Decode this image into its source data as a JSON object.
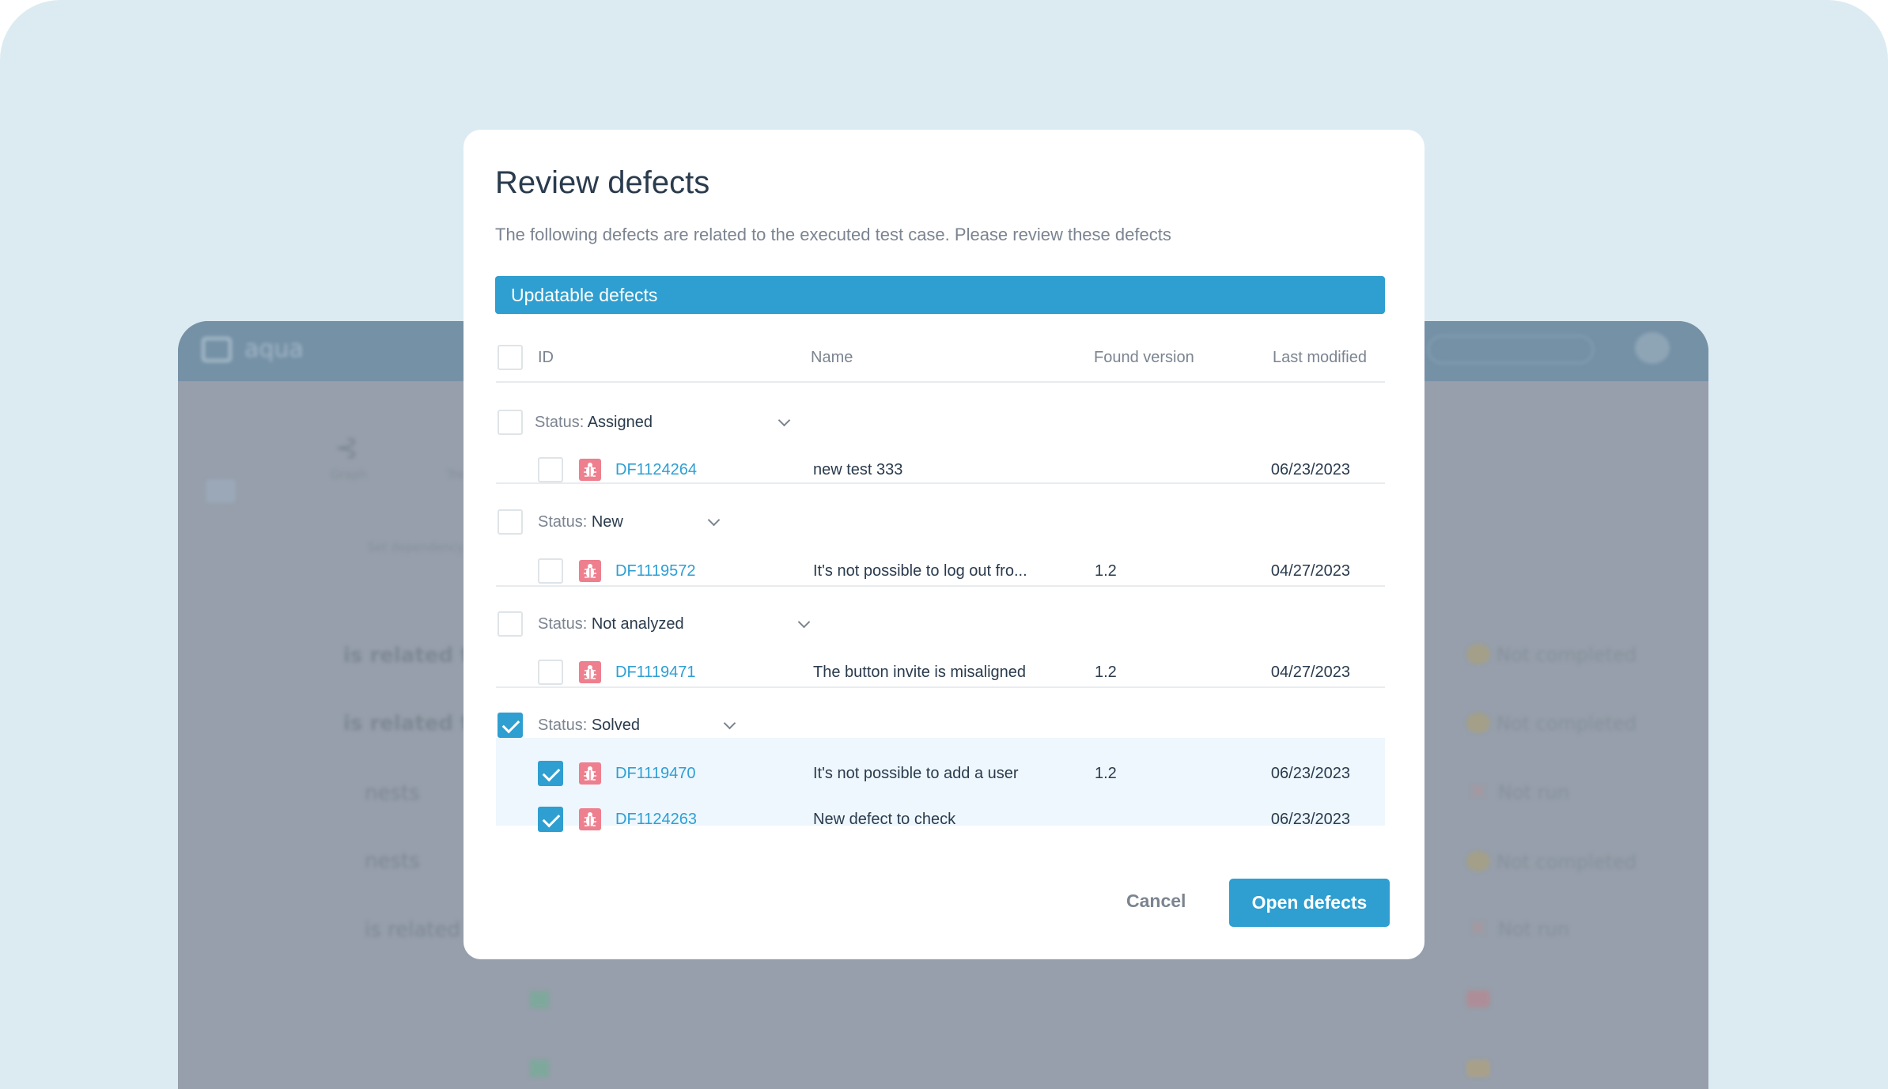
{
  "background_app": {
    "logo": "aqua",
    "views": [
      "Graph",
      "Tre"
    ],
    "set_dependency": "Set dependency",
    "tree_items": [
      "is related to",
      "is related to",
      "nests",
      "nests",
      "is related to"
    ],
    "statuses": [
      "Not completed",
      "Not completed",
      "Not run",
      "Not completed",
      "Not run"
    ]
  },
  "dialog": {
    "title": "Review defects",
    "subtitle": "The following defects are related to the executed test case. Please review these defects",
    "section": "Updatable defects",
    "columns": {
      "id": "ID",
      "name": "Name",
      "found_version": "Found version",
      "last_modified": "Last modified"
    },
    "status_prefix": "Status:",
    "groups": [
      {
        "status": "Assigned",
        "checked": false,
        "rows": [
          {
            "id": "DF1124264",
            "name": "new test 333",
            "version": "",
            "modified": "06/23/2023",
            "checked": false
          }
        ]
      },
      {
        "status": "New",
        "checked": false,
        "rows": [
          {
            "id": "DF1119572",
            "name": "It's not possible to log out fro...",
            "version": "1.2",
            "modified": "04/27/2023",
            "checked": false
          }
        ]
      },
      {
        "status": "Not analyzed",
        "checked": false,
        "rows": [
          {
            "id": "DF1119471",
            "name": "The button invite is misaligned",
            "version": "1.2",
            "modified": "04/27/2023",
            "checked": false
          }
        ]
      },
      {
        "status": "Solved",
        "checked": true,
        "rows": [
          {
            "id": "DF1119470",
            "name": "It's not possible to add a user",
            "version": "1.2",
            "modified": "06/23/2023",
            "checked": true
          },
          {
            "id": "DF1124263",
            "name": "New defect to check",
            "version": "",
            "modified": "06/23/2023",
            "checked": true
          }
        ]
      }
    ],
    "cancel": "Cancel",
    "open": "Open defects"
  },
  "colors": {
    "accent": "#2e9fd0",
    "bug": "#ee7f8e",
    "selected_row": "#eef7fd"
  }
}
